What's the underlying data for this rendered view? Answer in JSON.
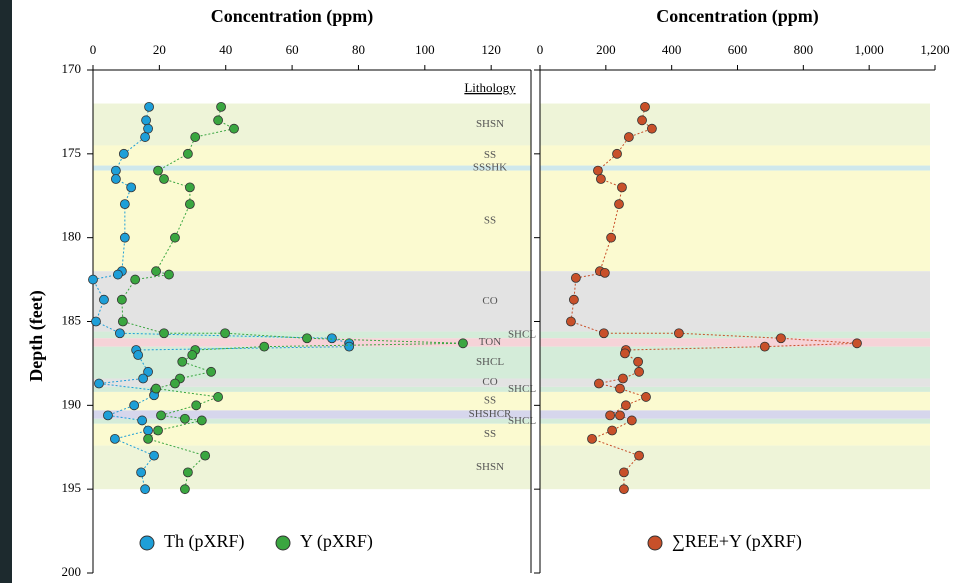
{
  "lithology": {
    "title": "Lithology",
    "units": [
      {
        "label": "SHSN",
        "top": 172.0,
        "bottom": 174.5,
        "color": "#eef4d8"
      },
      {
        "label": "SS",
        "top": 174.5,
        "bottom": 175.7,
        "color": "#fbfad0"
      },
      {
        "label": "SSSHK",
        "top": 175.7,
        "bottom": 176.0,
        "color": "#cfe8ec"
      },
      {
        "label": "SS",
        "top": 176.0,
        "bottom": 182.0,
        "color": "#fbfad0"
      },
      {
        "label": "CO",
        "top": 182.0,
        "bottom": 185.6,
        "color": "#e3e3e3"
      },
      {
        "label": "SHCL",
        "top": 185.6,
        "bottom": 186.0,
        "color": "#d4ecd9"
      },
      {
        "label": "TON",
        "top": 186.0,
        "bottom": 186.5,
        "color": "#f6d3d8"
      },
      {
        "label": "SHCL",
        "top": 186.5,
        "bottom": 188.4,
        "color": "#d4ecd9"
      },
      {
        "label": "CO",
        "top": 188.4,
        "bottom": 188.9,
        "color": "#e3e3e3"
      },
      {
        "label": "SHCL",
        "top": 188.9,
        "bottom": 189.2,
        "color": "#d4ecd9"
      },
      {
        "label": "SS",
        "top": 189.2,
        "bottom": 190.3,
        "color": "#fbfad0"
      },
      {
        "label": "SHSHCR",
        "top": 190.3,
        "bottom": 190.8,
        "color": "#d6d6ec"
      },
      {
        "label": "SHCL",
        "top": 190.8,
        "bottom": 191.1,
        "color": "#d4ecd9"
      },
      {
        "label": "SS",
        "top": 191.1,
        "bottom": 192.4,
        "color": "#fbfad0"
      },
      {
        "label": "SHSN",
        "top": 192.4,
        "bottom": 195.0,
        "color": "#eef4d8"
      }
    ]
  },
  "chart_data": [
    {
      "type": "scatter",
      "xlabel": "Concentration (ppm)",
      "ylabel": "Depth (feet)",
      "xlim": [
        0,
        132
      ],
      "xticks": [
        0,
        20,
        40,
        60,
        80,
        100,
        120
      ],
      "ylim": [
        170,
        200
      ],
      "yticks": [
        170,
        175,
        180,
        185,
        190,
        195,
        200
      ],
      "y_inverted": true,
      "series": [
        {
          "name": "Th (pXRF)",
          "color": "#1e9fd8",
          "x": [
            16.9,
            16.0,
            16.6,
            15.7,
            9.3,
            6.9,
            6.9,
            11.5,
            9.6,
            9.6,
            8.7,
            7.5,
            0,
            3.3,
            0.9,
            8.1,
            72.0,
            77.2,
            77.2,
            13.0,
            13.6,
            16.6,
            15.1,
            1.8,
            18.7,
            18.4,
            12.4,
            4.5,
            14.8,
            16.6,
            6.6,
            18.4,
            14.5,
            15.7
          ],
          "y": [
            172.2,
            173.0,
            173.5,
            174.0,
            175.0,
            176.0,
            176.5,
            177.0,
            178.0,
            180.0,
            182.0,
            182.2,
            182.5,
            183.7,
            185.0,
            185.7,
            186.0,
            186.3,
            186.5,
            186.7,
            187.0,
            188.0,
            188.4,
            188.7,
            189.1,
            189.4,
            190.0,
            190.6,
            190.9,
            191.5,
            192.0,
            193.0,
            194.0,
            195.0
          ]
        },
        {
          "name": "Y  (pXRF)",
          "color": "#3aa640",
          "x": [
            38.6,
            37.7,
            42.5,
            30.8,
            28.6,
            19.6,
            21.4,
            29.2,
            29.2,
            24.7,
            19.0,
            22.9,
            12.7,
            8.7,
            9.0,
            21.4,
            39.8,
            64.5,
            111.5,
            51.6,
            30.8,
            29.9,
            26.9,
            35.6,
            26.2,
            24.7,
            19.0,
            37.7,
            31.1,
            20.5,
            27.7,
            32.8,
            19.6,
            16.6,
            33.8,
            28.6,
            27.7
          ],
          "y": [
            172.2,
            173.0,
            173.5,
            174.0,
            175.0,
            176.0,
            176.5,
            177.0,
            178.0,
            180.0,
            182.0,
            182.2,
            182.5,
            183.7,
            185.0,
            185.7,
            185.7,
            186.0,
            186.3,
            186.5,
            186.7,
            187.0,
            187.4,
            188.0,
            188.4,
            188.7,
            189.0,
            189.5,
            190.0,
            190.6,
            190.8,
            190.9,
            191.5,
            192.0,
            193.0,
            194.0,
            195.0
          ]
        }
      ]
    },
    {
      "type": "scatter",
      "xlabel": "Concentration (ppm)",
      "xlim": [
        0,
        1200
      ],
      "xticks": [
        0,
        200,
        400,
        600,
        800,
        {
          "value": 1000,
          "label": "1,000"
        },
        {
          "value": 1200,
          "label": "1,200"
        }
      ],
      "ylim": [
        170,
        200
      ],
      "yticks": [
        170,
        175,
        180,
        185,
        190,
        195,
        200
      ],
      "y_inverted": true,
      "series": [
        {
          "name": "∑REE+Y  (pXRF)",
          "color": "#c8502a",
          "x": [
            319,
            310,
            340,
            270,
            234,
            176,
            185,
            249,
            240,
            216,
            182,
            197,
            109,
            103,
            94,
            194,
            422,
            732,
            963,
            683,
            261,
            258,
            298,
            301,
            252,
            179,
            243,
            322,
            261,
            213,
            243,
            279,
            219,
            158,
            301,
            255,
            255
          ],
          "y": [
            172.2,
            173.0,
            173.5,
            174.0,
            175.0,
            176.0,
            176.5,
            177.0,
            178.0,
            180.0,
            182.0,
            182.1,
            182.4,
            183.7,
            185.0,
            185.7,
            185.7,
            186.0,
            186.3,
            186.5,
            186.7,
            186.9,
            187.4,
            188.0,
            188.4,
            188.7,
            189.0,
            189.5,
            190.0,
            190.6,
            190.6,
            190.9,
            191.5,
            192.0,
            193.0,
            194.0,
            195.0
          ]
        }
      ]
    }
  ]
}
